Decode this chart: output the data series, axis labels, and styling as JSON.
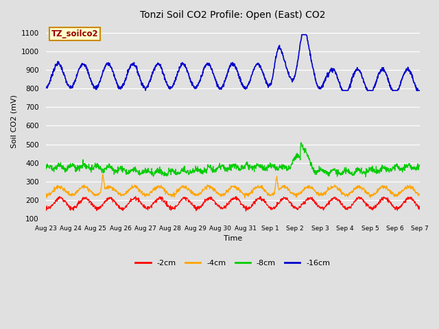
{
  "title": "Tonzi Soil CO2 Profile: Open (East) CO2",
  "xlabel": "Time",
  "ylabel": "Soil CO2 (mV)",
  "ylim": [
    100,
    1150
  ],
  "yticks": [
    100,
    200,
    300,
    400,
    500,
    600,
    700,
    800,
    900,
    1000,
    1100
  ],
  "bg_color": "#e0e0e0",
  "line_colors": {
    "2cm": "#ff0000",
    "4cm": "#ffa500",
    "8cm": "#00cc00",
    "16cm": "#0000cc"
  },
  "legend_labels": [
    "-2cm",
    "-4cm",
    "-8cm",
    "-16cm"
  ],
  "legend_colors": [
    "#ff0000",
    "#ffa500",
    "#00cc00",
    "#0000cc"
  ],
  "annotation_box": {
    "text": "TZ_soilco2",
    "facecolor": "#ffffcc",
    "edgecolor": "#cc8800",
    "textcolor": "#990000"
  },
  "x_tick_labels": [
    "Aug 23",
    "Aug 24",
    "Aug 25",
    "Aug 26",
    "Aug 27",
    "Aug 28",
    "Aug 29",
    "Aug 30",
    "Aug 31",
    "Sep 1",
    "Sep 2",
    "Sep 3",
    "Sep 4",
    "Sep 5",
    "Sep 6",
    "Sep 7"
  ],
  "n_days": 15
}
